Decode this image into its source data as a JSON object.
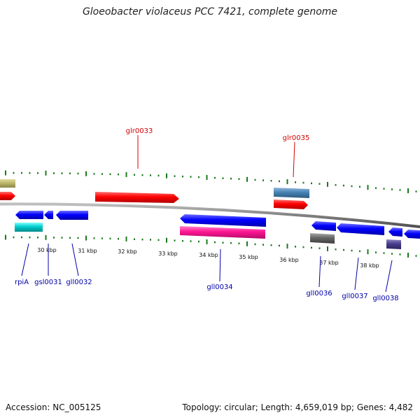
{
  "title": "Gloeobacter violaceus PCC 7421, complete genome",
  "footer": {
    "accession": "Accession: NC_005125",
    "summary": "Topology: circular; Length: 4,659,019 bp; Genes: 4,482"
  },
  "scale_labels": [
    "30 kbp",
    "31 kbp",
    "32 kbp",
    "33 kbp",
    "34 kbp",
    "35 kbp",
    "36 kbp",
    "37 kbp",
    "38 kbp"
  ],
  "forward_genes": [
    {
      "name": "glr0033",
      "color": "#d40000"
    },
    {
      "name": "glr0035",
      "color": "#d40000"
    }
  ],
  "reverse_genes": [
    {
      "name": "rpiA",
      "color": "#0000aa"
    },
    {
      "name": "gsl0031",
      "color": "#0000aa"
    },
    {
      "name": "gll0032",
      "color": "#0000aa"
    },
    {
      "name": "gll0034",
      "color": "#0000aa"
    },
    {
      "name": "gll0036",
      "color": "#0000aa"
    },
    {
      "name": "gll0037",
      "color": "#0000aa"
    },
    {
      "name": "gll0038",
      "color": "#0000aa"
    }
  ],
  "colors": {
    "forward_cds": "#ff0000",
    "reverse_cds": "#0000ff",
    "backbone": "#808080",
    "ticks": "#1a7a1a",
    "forward_label": "#d40000",
    "reverse_label": "#0000aa"
  }
}
